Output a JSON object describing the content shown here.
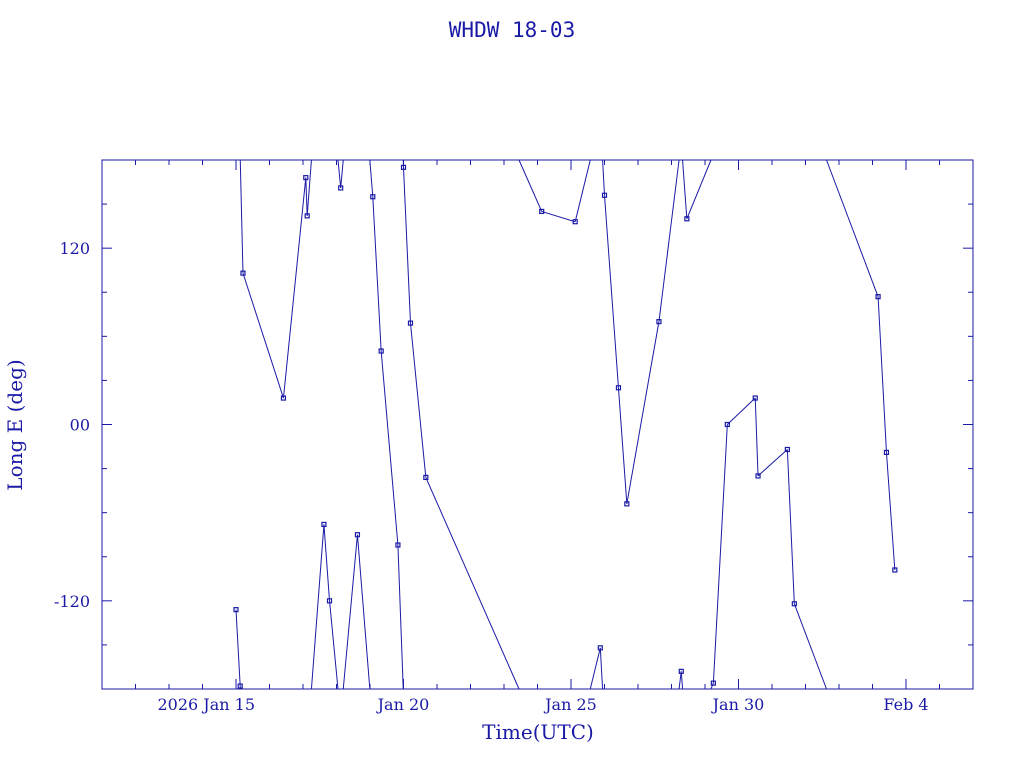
{
  "chart_data": {
    "type": "scatter",
    "title": "WHDW 18-03",
    "xlabel": "Time(UTC)",
    "ylabel": "Long E (deg)",
    "x_tick_labels": [
      "2026 Jan 15",
      "Jan 20",
      "Jan 25",
      "Jan 30",
      "Feb  4"
    ],
    "y_tick_labels": [
      "-120",
      "00",
      "120"
    ],
    "ylim": [
      -180,
      180
    ],
    "xlim": [
      "2026-01-11T00:00",
      "2026-02-06T00:00"
    ],
    "wrap": true,
    "points": [
      {
        "t": "2026-01-15T00:00",
        "lon": -126
      },
      {
        "t": "2026-01-15T03:00",
        "lon": -178
      },
      {
        "t": "2026-01-15T05:00",
        "lon": 103
      },
      {
        "t": "2026-01-16T10:00",
        "lon": 18
      },
      {
        "t": "2026-01-17T02:00",
        "lon": 168
      },
      {
        "t": "2026-01-17T03:00",
        "lon": 142
      },
      {
        "t": "2026-01-17T15:00",
        "lon": -68
      },
      {
        "t": "2026-01-17T19:00",
        "lon": -120
      },
      {
        "t": "2026-01-18T03:00",
        "lon": 161
      },
      {
        "t": "2026-01-18T15:00",
        "lon": -75
      },
      {
        "t": "2026-01-19T02:00",
        "lon": 155
      },
      {
        "t": "2026-01-19T08:00",
        "lon": 50
      },
      {
        "t": "2026-01-19T20:00",
        "lon": -82
      },
      {
        "t": "2026-01-20T00:00",
        "lon": 175
      },
      {
        "t": "2026-01-20T05:00",
        "lon": 69
      },
      {
        "t": "2026-01-20T16:00",
        "lon": -36
      },
      {
        "t": "2026-01-24T03:00",
        "lon": 145
      },
      {
        "t": "2026-01-25T03:00",
        "lon": 138
      },
      {
        "t": "2026-01-25T21:00",
        "lon": -152
      },
      {
        "t": "2026-01-26T00:00",
        "lon": 156
      },
      {
        "t": "2026-01-26T10:00",
        "lon": 25
      },
      {
        "t": "2026-01-26T16:00",
        "lon": -54
      },
      {
        "t": "2026-01-27T15:00",
        "lon": 70
      },
      {
        "t": "2026-01-28T07:00",
        "lon": -168
      },
      {
        "t": "2026-01-28T11:00",
        "lon": 140
      },
      {
        "t": "2026-01-29T06:00",
        "lon": -176
      },
      {
        "t": "2026-01-29T16:00",
        "lon": 0
      },
      {
        "t": "2026-01-30T12:00",
        "lon": 18
      },
      {
        "t": "2026-01-30T14:00",
        "lon": -35
      },
      {
        "t": "2026-01-31T11:00",
        "lon": -17
      },
      {
        "t": "2026-01-31T16:00",
        "lon": -122
      },
      {
        "t": "2026-02-03T04:00",
        "lon": 87
      },
      {
        "t": "2026-02-03T10:00",
        "lon": -19
      },
      {
        "t": "2026-02-03T16:00",
        "lon": -99
      }
    ]
  }
}
